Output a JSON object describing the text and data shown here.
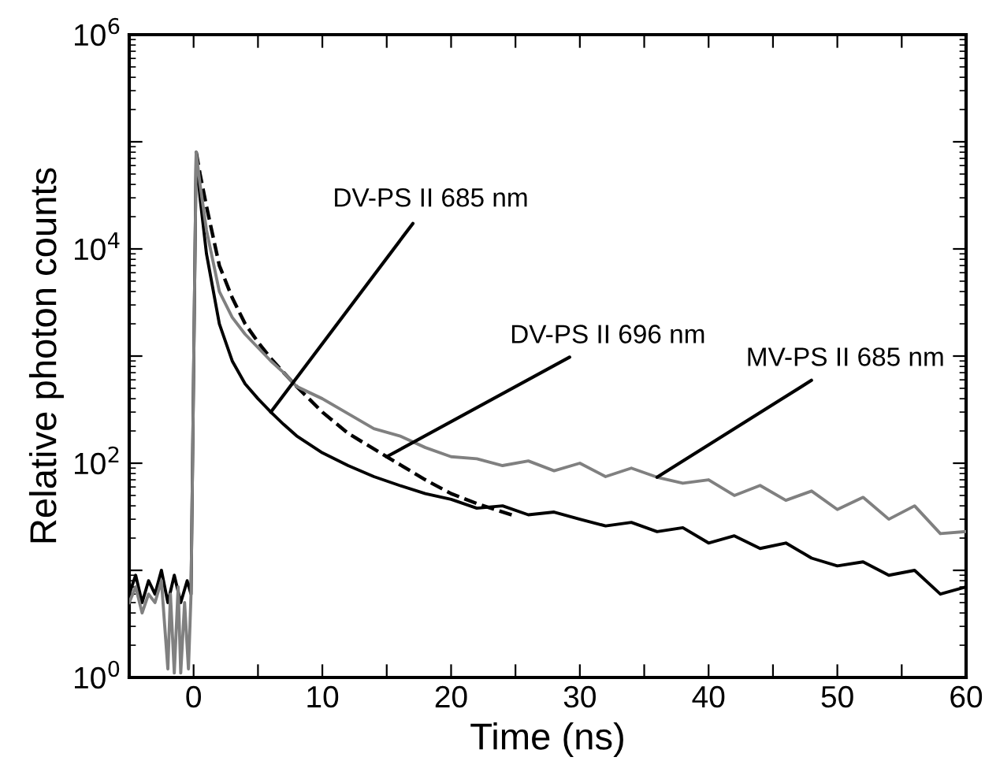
{
  "chart_data": {
    "type": "line",
    "xlabel": "Time (ns)",
    "ylabel": "Relative photon counts",
    "log": "y",
    "xlim": [
      -5,
      60
    ],
    "ylim": [
      1,
      1000000
    ],
    "xticks": [
      {
        "value": -5,
        "label": null
      },
      0,
      {
        "value": 5,
        "label": null
      },
      10,
      {
        "value": 15,
        "label": null
      },
      20,
      {
        "value": 25,
        "label": null
      },
      30,
      {
        "value": 35,
        "label": null
      },
      40,
      {
        "value": 45,
        "label": null
      },
      50,
      {
        "value": 55,
        "label": null
      },
      60
    ],
    "yticks": [
      {
        "value": 1,
        "label": "10$^{0}$"
      },
      {
        "value": 10,
        "label": null
      },
      {
        "value": 100,
        "label": "10$^{2}$"
      },
      {
        "value": 1000,
        "label": null
      },
      {
        "value": 10000,
        "label": "10$^{4}$"
      },
      {
        "value": 100000,
        "label": null
      },
      {
        "value": 1000000,
        "label": "10$^{6}$"
      }
    ],
    "marker": "none",
    "series": [
      {
        "color": "#808080",
        "line_style": "solid",
        "x": [
          -5,
          -4.5,
          -4,
          -3.5,
          -3,
          -2.5,
          -2,
          -1.8,
          -1.5,
          -1.2,
          -1,
          -0.7,
          -0.4,
          -0.2,
          0.2,
          0.5,
          1,
          2,
          3,
          4,
          5,
          6,
          7,
          8,
          10,
          12,
          14,
          16,
          18,
          20,
          22,
          24,
          26,
          28,
          30,
          32,
          34,
          36,
          38,
          40,
          42,
          44,
          46,
          48,
          50,
          52,
          54,
          56,
          58,
          60
        ],
        "values": [
          5,
          7,
          4,
          6,
          5,
          8,
          1.2,
          6,
          1.1,
          7,
          1.1,
          5,
          1.2,
          6,
          80000,
          40000,
          15000,
          4000,
          2300,
          1600,
          1200,
          900,
          700,
          520,
          400,
          290,
          210,
          180,
          140,
          115,
          110,
          95,
          105,
          85,
          100,
          75,
          90,
          74,
          65,
          70,
          50,
          62,
          45,
          55,
          37,
          48,
          30,
          40,
          22,
          23
        ]
      },
      {
        "color": "#000000",
        "line_style": "solid",
        "x": [
          -5,
          -4.5,
          -4,
          -3.5,
          -3,
          -2.5,
          -2,
          -1.5,
          -1,
          -0.5,
          -0.2,
          0.2,
          0.5,
          1,
          2,
          3,
          4,
          5,
          6,
          7,
          8,
          10,
          12,
          14,
          16,
          18,
          20,
          22,
          24,
          26,
          28,
          30,
          32,
          34,
          36,
          38,
          40,
          42,
          44,
          46,
          48,
          50,
          52,
          54,
          56,
          58,
          60
        ],
        "values": [
          6,
          9,
          5,
          8,
          6,
          10,
          5,
          9,
          5,
          8,
          6,
          80000,
          30000,
          9000,
          2000,
          900,
          550,
          400,
          300,
          230,
          180,
          125,
          95,
          75,
          62,
          52,
          46,
          38,
          40,
          33,
          35,
          30,
          26,
          28,
          23,
          25,
          18,
          21,
          16,
          18,
          13,
          11,
          12,
          9,
          10,
          6,
          7
        ]
      },
      {
        "color": "#000000",
        "line_style": "dashed",
        "x": [
          0.2,
          0.5,
          1,
          2,
          3,
          4,
          5,
          6,
          7,
          8,
          10,
          12,
          15,
          18,
          20,
          22,
          25
        ],
        "values": [
          80000,
          50000,
          25000,
          7000,
          3500,
          2000,
          1350,
          950,
          700,
          520,
          300,
          190,
          115,
          70,
          52,
          42,
          32
        ]
      }
    ],
    "annotations": [
      {
        "text": "DV-PS II 685 nm",
        "x": 6,
        "y": 300
      },
      {
        "text": "DV-PS II 696 nm",
        "x": 15,
        "y": 115
      },
      {
        "text": "MV-PS II 685 nm",
        "x": 36,
        "y": 74
      }
    ]
  }
}
